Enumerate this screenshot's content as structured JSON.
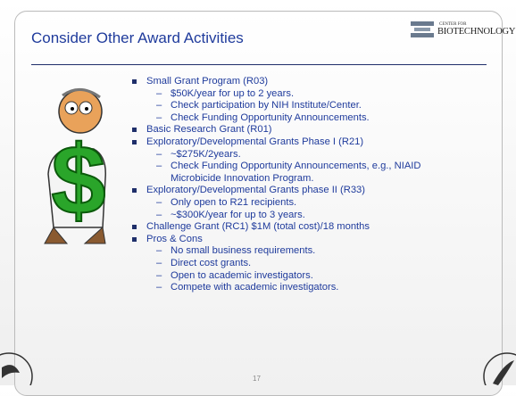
{
  "header": {
    "title": "Consider Other Award Activities",
    "logo": {
      "line1": "CENTER FOR",
      "line2": "BIOTECHNOLOGY"
    }
  },
  "items": [
    {
      "text": "Small Grant Program (R03)",
      "subitems": [
        "$50K/year for up to 2 years.",
        "Check participation by NIH Institute/Center.",
        "Check Funding Opportunity Announcements."
      ]
    },
    {
      "text": "Basic Research Grant (R01)",
      "subitems": []
    },
    {
      "text": "Exploratory/Developmental Grants Phase I (R21)",
      "subitems": [
        "~$275K/2years.",
        "Check Funding Opportunity Announcements, e.g., NIAID Microbicide Innovation Program."
      ]
    },
    {
      "text": "Exploratory/Developmental Grants phase II (R33)",
      "subitems": [
        "Only open to R21 recipients.",
        "~$300K/year for up to 3 years."
      ]
    },
    {
      "text": "Challenge Grant (RC1) $1M (total cost)/18 months",
      "subitems": []
    },
    {
      "text": "Pros & Cons",
      "subitems": [
        "No small business requirements.",
        "Direct cost grants.",
        "Open to academic investigators.",
        "Compete with academic investigators."
      ]
    }
  ],
  "footer": {
    "page": "17"
  }
}
